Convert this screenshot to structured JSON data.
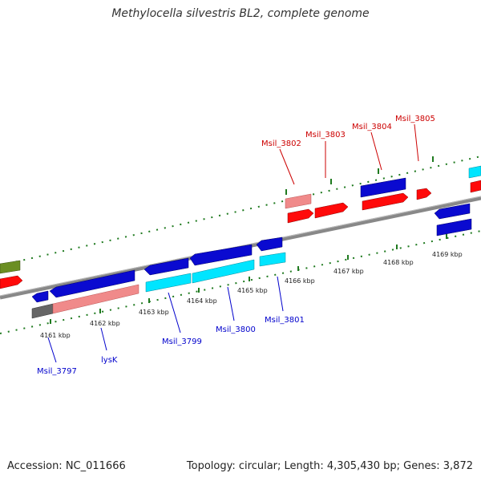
{
  "title": "Methylocella silvestris BL2, complete genome",
  "accession": "Accession: NC_011666",
  "topology": "Topology: circular; Length: 4,305,430 bp; Genes: 3,872",
  "colors": {
    "backbone": "#888888",
    "tick": "#1f7a1f",
    "gene_blue": "#0a0ad0",
    "gene_cyan": "#00e5ff",
    "gene_red": "#ff0a0a",
    "gene_pink": "#f08a8a",
    "gene_gray": "#666666",
    "gene_olive": "#6b8e23",
    "label_forward": "#cc0000",
    "label_reverse": "#0000cc"
  },
  "scale_labels": [
    "4161 kbp",
    "4162 kbp",
    "4163 kbp",
    "4164 kbp",
    "4165 kbp",
    "4166 kbp",
    "4167 kbp",
    "4168 kbp",
    "4169 kbp"
  ],
  "forward_labels": [
    "Msil_3802",
    "Msil_3803",
    "Msil_3804",
    "Msil_3805"
  ],
  "reverse_labels": [
    "Msil_3797",
    "lysK",
    "Msil_3799",
    "Msil_3800",
    "Msil_3801"
  ]
}
